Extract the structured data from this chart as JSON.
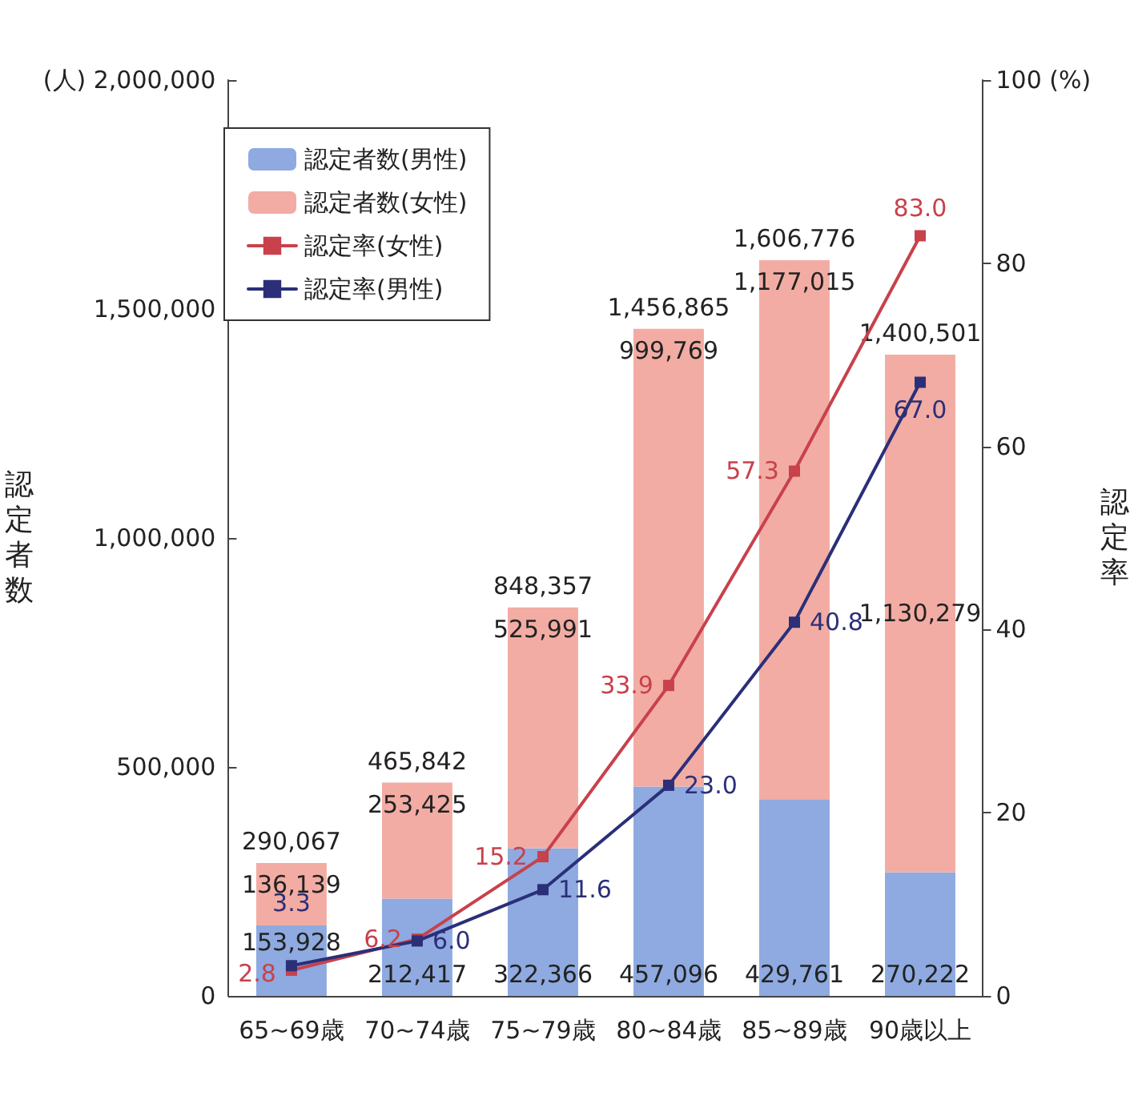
{
  "chart_data": {
    "type": "bar",
    "stacked": true,
    "ylabel": "認定者数",
    "y2label": "認定率",
    "categories": [
      "65~69歳",
      "70~74歳",
      "75~79歳",
      "80~84歳",
      "85~89歳",
      "90歳以上"
    ],
    "series": [
      {
        "name": "認定者数(男性)",
        "color": "#8eaae0",
        "values": [
          153928,
          212417,
          322366,
          457096,
          429761,
          270222
        ],
        "value_labels": [
          "153,928",
          "212,417",
          "322,366",
          "457,096",
          "429,761",
          "270,222"
        ]
      },
      {
        "name": "認定者数(女性)",
        "color": "#f2aca3",
        "values": [
          136139,
          253425,
          525991,
          999769,
          1177015,
          1130279
        ],
        "value_labels": [
          "136,139",
          "253,425",
          "525,991",
          "999,769",
          "1,177,015",
          "1,130,279"
        ]
      },
      {
        "name": "認定率(女性)",
        "type": "line",
        "axis": "y2",
        "color": "#c8414b",
        "values": [
          2.8,
          6.2,
          15.2,
          33.9,
          57.3,
          83.0
        ],
        "value_labels": [
          "2.8",
          "6.2",
          "15.2",
          "33.9",
          "57.3",
          "83.0"
        ]
      },
      {
        "name": "認定率(男性)",
        "type": "line",
        "axis": "y2",
        "color": "#2b2f78",
        "values": [
          3.3,
          6.0,
          11.6,
          23.0,
          40.8,
          67.0
        ],
        "value_labels": [
          "3.3",
          "6.0",
          "11.6",
          "23.0",
          "40.8",
          "67.0"
        ]
      }
    ],
    "totals": [
      "290,067",
      "465,842",
      "848,357",
      "1,456,865",
      "1,606,776",
      "1,400,501"
    ],
    "ylim": [
      0,
      2000000
    ],
    "yticks": [
      0,
      {
        "value": 500000,
        "label": "500,000"
      },
      {
        "value": 1000000,
        "label": "1,000,000"
      },
      {
        "value": 1500000,
        "label": "1,500,000"
      },
      {
        "value": 2000000,
        "label": "(人) 2,000,000"
      }
    ],
    "y2lim": [
      0,
      100
    ],
    "y2ticks": [
      0,
      20,
      40,
      60,
      80,
      {
        "value": 100,
        "label": "100 (%)"
      }
    ],
    "legend": "top left",
    "grid": false,
    "marker": "square",
    "line_style": "solid"
  }
}
